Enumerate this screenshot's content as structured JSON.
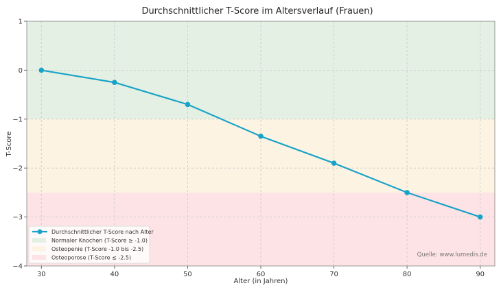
{
  "chart_data": {
    "type": "line",
    "title": "Durchschnittlicher T-Score im Altersverlauf (Frauen)",
    "xlabel": "Alter (in Jahren)",
    "ylabel": "T-Score",
    "x": [
      30,
      40,
      50,
      60,
      70,
      80,
      90
    ],
    "series": [
      {
        "name": "Durchschnittlicher T-Score nach Alter",
        "values": [
          0.0,
          -0.25,
          -0.7,
          -1.35,
          -1.9,
          -2.5,
          -3.0
        ],
        "color": "#1aa3c8",
        "marker": "circle"
      }
    ],
    "bands": [
      {
        "name": "Normaler Knochen (T-Score ≥ -1.0)",
        "from": -1.0,
        "to": 1.0,
        "color": "#e4f0e3"
      },
      {
        "name": "Osteopenie (T-Score -1.0 bis -2.5)",
        "from": -2.5,
        "to": -1.0,
        "color": "#fdf3e3"
      },
      {
        "name": "Osteoporose (T-Score ≤ -2.5)",
        "from": -4.0,
        "to": -2.5,
        "color": "#fde3e5"
      }
    ],
    "xticks": [
      30,
      40,
      50,
      60,
      70,
      80,
      90
    ],
    "yticks": [
      1,
      0,
      -1,
      -2,
      -3,
      -4
    ],
    "xlim": [
      28,
      92
    ],
    "ylim": [
      -4,
      1
    ],
    "grid": true,
    "legend_position": "lower left",
    "annotation": "Quelle: www.lumedis.de"
  }
}
